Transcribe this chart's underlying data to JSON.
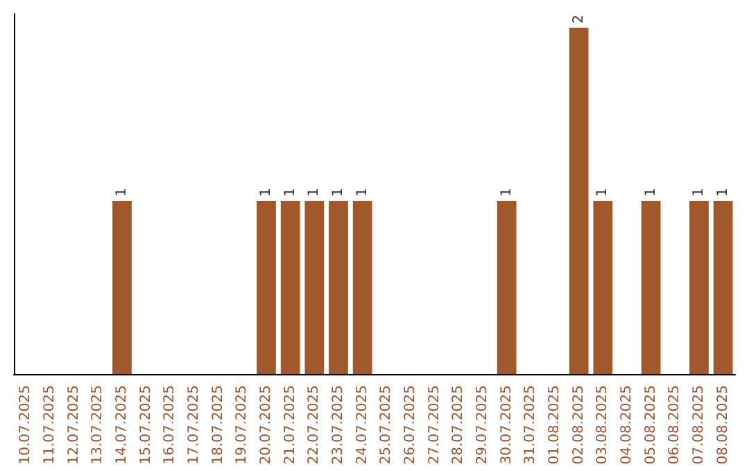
{
  "chart_data": {
    "type": "bar",
    "categories": [
      "10.07.2025",
      "11.07.2025",
      "12.07.2025",
      "13.07.2025",
      "14.07.2025",
      "15.07.2025",
      "16.07.2025",
      "17.07.2025",
      "18.07.2025",
      "19.07.2025",
      "20.07.2025",
      "21.07.2025",
      "22.07.2025",
      "23.07.2025",
      "24.07.2025",
      "25.07.2025",
      "26.07.2025",
      "27.07.2025",
      "28.07.2025",
      "29.07.2025",
      "30.07.2025",
      "31.07.2025",
      "01.08.2025",
      "02.08.2025",
      "03.08.2025",
      "04.08.2025",
      "05.08.2025",
      "06.08.2025",
      "07.08.2025",
      "08.08.2025"
    ],
    "values": [
      0,
      0,
      0,
      0,
      1,
      0,
      0,
      0,
      0,
      0,
      1,
      1,
      1,
      1,
      1,
      0,
      0,
      0,
      0,
      0,
      1,
      0,
      0,
      2,
      1,
      0,
      1,
      0,
      1,
      1
    ],
    "value_labels": [
      null,
      null,
      null,
      null,
      "1",
      null,
      null,
      null,
      null,
      null,
      "1",
      "1",
      "1",
      "1",
      "1",
      null,
      null,
      null,
      null,
      null,
      "1",
      null,
      null,
      "2",
      "1",
      null,
      "1",
      null,
      "1",
      "1"
    ],
    "color": "#a0582a",
    "ylim": [
      0,
      2.08
    ],
    "tick_labels": "x"
  }
}
